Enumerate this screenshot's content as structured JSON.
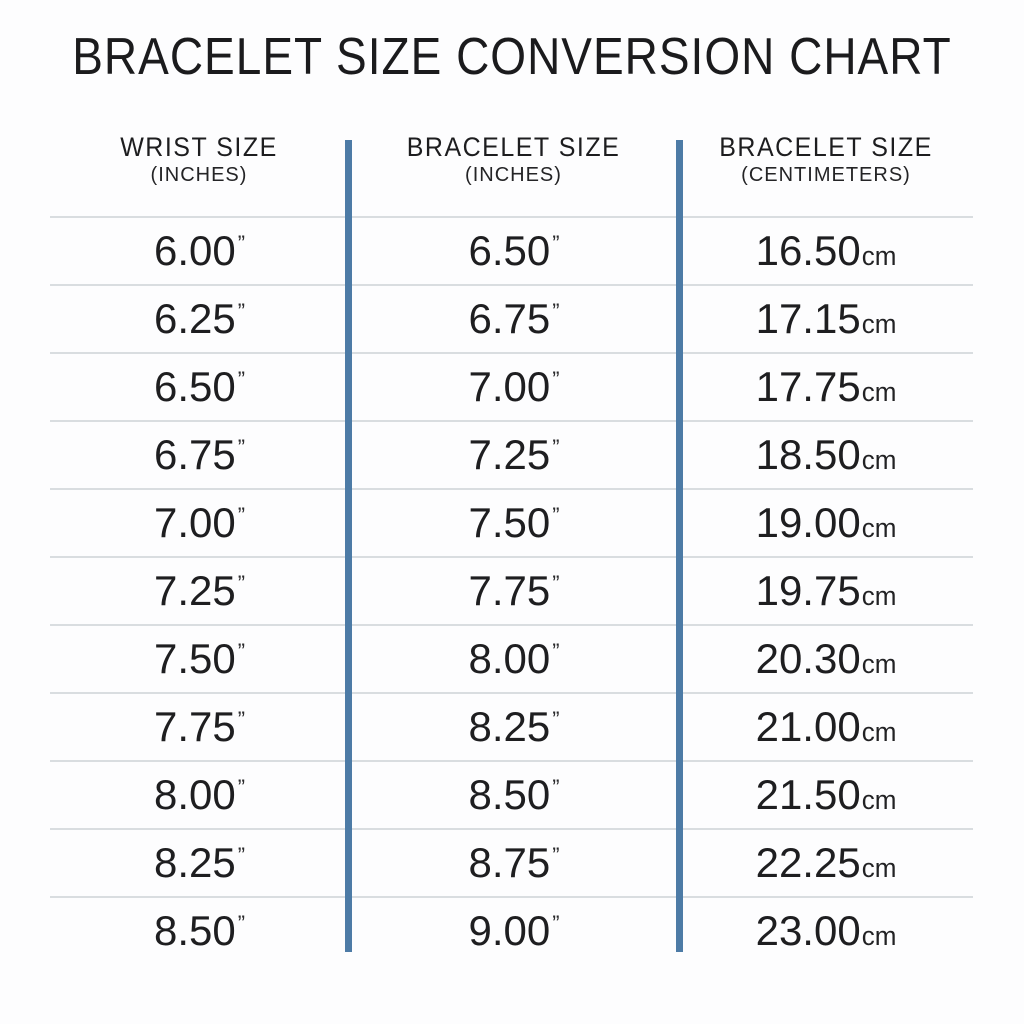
{
  "title": "BRACELET SIZE CONVERSION CHART",
  "table": {
    "columns": [
      {
        "label": "WRIST SIZE",
        "sublabel": "(INCHES)"
      },
      {
        "label": "BRACELET SIZE",
        "sublabel": "(INCHES)"
      },
      {
        "label": "BRACELET SIZE",
        "sublabel": "(CENTIMETERS)"
      }
    ],
    "inch_mark": "”",
    "cm_unit": "cm",
    "rows": [
      {
        "wrist_in": "6.00",
        "bracelet_in": "6.50",
        "bracelet_cm": "16.50"
      },
      {
        "wrist_in": "6.25",
        "bracelet_in": "6.75",
        "bracelet_cm": "17.15"
      },
      {
        "wrist_in": "6.50",
        "bracelet_in": "7.00",
        "bracelet_cm": "17.75"
      },
      {
        "wrist_in": "6.75",
        "bracelet_in": "7.25",
        "bracelet_cm": "18.50"
      },
      {
        "wrist_in": "7.00",
        "bracelet_in": "7.50",
        "bracelet_cm": "19.00"
      },
      {
        "wrist_in": "7.25",
        "bracelet_in": "7.75",
        "bracelet_cm": "19.75"
      },
      {
        "wrist_in": "7.50",
        "bracelet_in": "8.00",
        "bracelet_cm": "20.30"
      },
      {
        "wrist_in": "7.75",
        "bracelet_in": "8.25",
        "bracelet_cm": "21.00"
      },
      {
        "wrist_in": "8.00",
        "bracelet_in": "8.50",
        "bracelet_cm": "21.50"
      },
      {
        "wrist_in": "8.25",
        "bracelet_in": "8.75",
        "bracelet_cm": "22.25"
      },
      {
        "wrist_in": "8.50",
        "bracelet_in": "9.00",
        "bracelet_cm": "23.00"
      }
    ]
  },
  "colors": {
    "divider_blue": "#4d7ba6",
    "row_line": "#d9dde0",
    "text": "#1d1d1f",
    "background": "#fdfdfe"
  },
  "chart_data": {
    "type": "table",
    "title": "BRACELET SIZE CONVERSION CHART",
    "columns": [
      "WRIST SIZE (INCHES)",
      "BRACELET SIZE (INCHES)",
      "BRACELET SIZE (CENTIMETERS)"
    ],
    "rows": [
      [
        "6.00",
        "6.50",
        "16.50"
      ],
      [
        "6.25",
        "6.75",
        "17.15"
      ],
      [
        "6.50",
        "7.00",
        "17.75"
      ],
      [
        "6.75",
        "7.25",
        "18.50"
      ],
      [
        "7.00",
        "7.50",
        "19.00"
      ],
      [
        "7.25",
        "7.75",
        "19.75"
      ],
      [
        "7.50",
        "8.00",
        "20.30"
      ],
      [
        "7.75",
        "8.25",
        "21.00"
      ],
      [
        "8.00",
        "8.50",
        "21.50"
      ],
      [
        "8.25",
        "8.75",
        "22.25"
      ],
      [
        "8.50",
        "9.00",
        "23.00"
      ]
    ]
  }
}
